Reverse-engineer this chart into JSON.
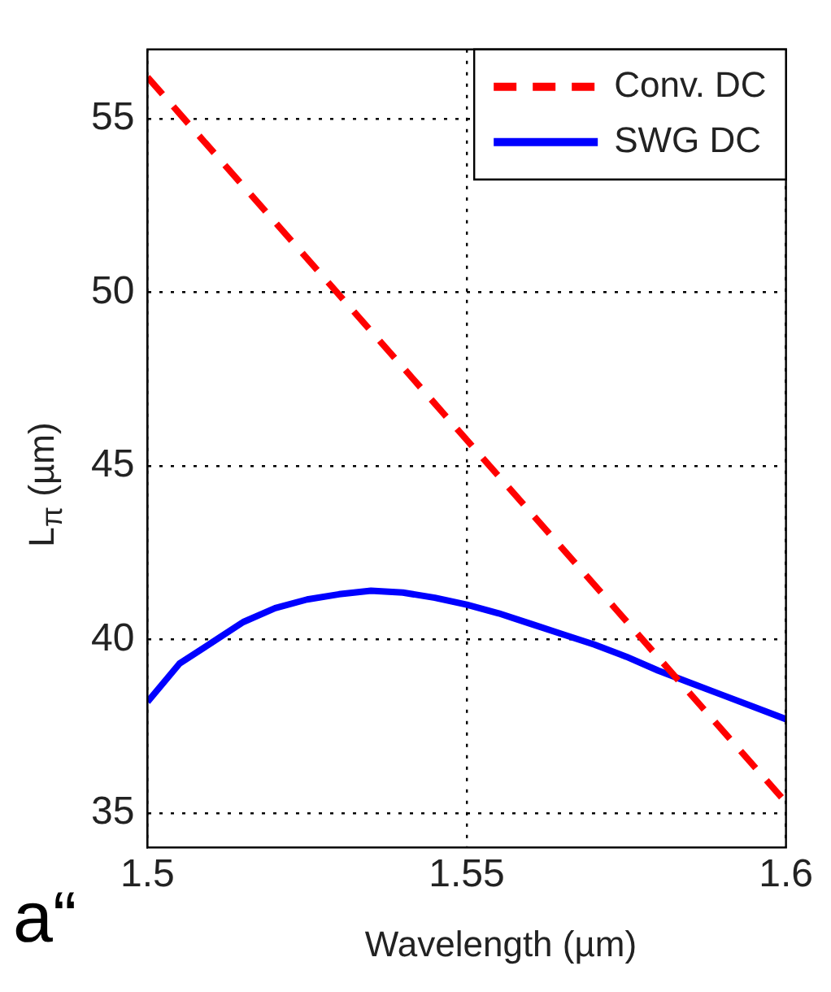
{
  "chart_data": {
    "type": "line",
    "xlabel": "Wavelength (µm)",
    "ylabel": "L$_{π}$ (µm)",
    "annotations": [
      "a“"
    ],
    "xlim": [
      1.5,
      1.6
    ],
    "xticks": [
      1.5,
      1.55,
      1.6
    ],
    "ylim": [
      34,
      57
    ],
    "yticks": [
      35,
      40,
      45,
      50,
      55
    ],
    "grid": true,
    "legend": "top right",
    "marker": "none",
    "series": [
      {
        "name": "Conv. DC",
        "color": "#ff0000",
        "line_style": "dashed",
        "x": [
          1.5,
          1.6
        ],
        "values": [
          56.2,
          35.3
        ]
      },
      {
        "name": "SWG DC",
        "color": "#0000ff",
        "line_style": "solid",
        "x": [
          1.5,
          1.505,
          1.51,
          1.515,
          1.52,
          1.525,
          1.53,
          1.535,
          1.54,
          1.545,
          1.55,
          1.555,
          1.56,
          1.565,
          1.57,
          1.575,
          1.58,
          1.585,
          1.59,
          1.595,
          1.6
        ],
        "values": [
          38.2,
          39.3,
          39.9,
          40.5,
          40.9,
          41.15,
          41.3,
          41.4,
          41.35,
          41.2,
          41.0,
          40.75,
          40.45,
          40.15,
          39.85,
          39.5,
          39.1,
          38.75,
          38.4,
          38.05,
          37.7
        ]
      }
    ]
  }
}
